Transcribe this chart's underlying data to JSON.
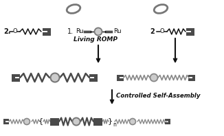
{
  "bg_color": "#ffffff",
  "dark_gray": "#4a4a4a",
  "med_gray": "#888888",
  "light_gray": "#cccccc",
  "text_color": "#111111",
  "label_living_romp": "Living ROMP",
  "label_self_assembly": "Controlled Self-Assembly",
  "label_2a": "2",
  "label_2b": "2",
  "label_1": "1.",
  "label_Ru_left": "Ru",
  "label_Ru_right": "Ru",
  "label_n": "n"
}
